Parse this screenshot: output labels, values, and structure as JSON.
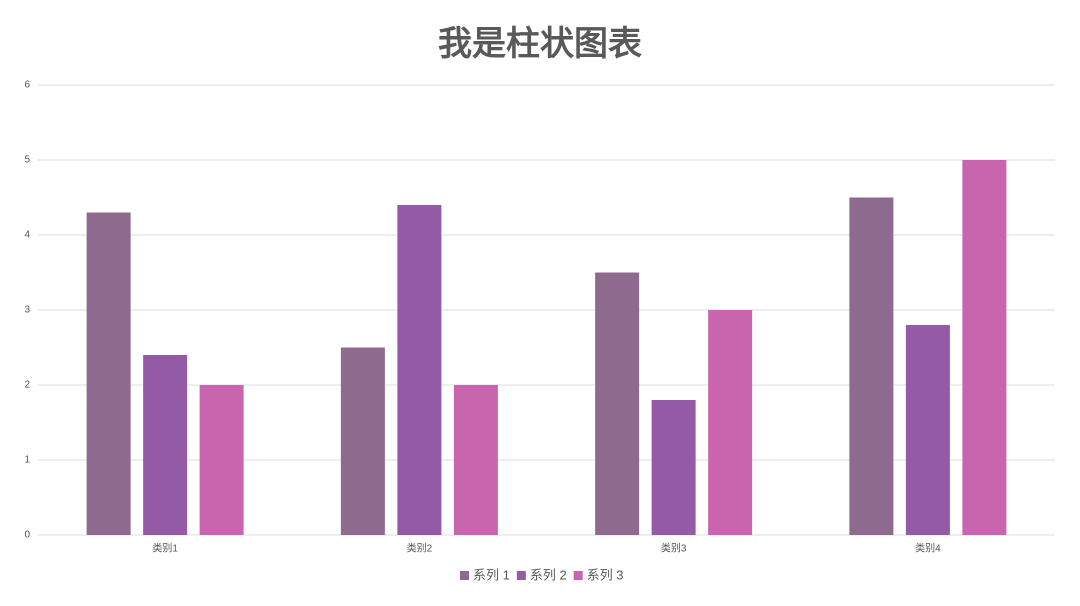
{
  "chart_data": {
    "type": "bar",
    "title": "我是柱状图表",
    "categories": [
      "类别1",
      "类别2",
      "类别3",
      "类别4"
    ],
    "series": [
      {
        "name": "系列 1",
        "color": "#8e6b8e",
        "values": [
          4.3,
          2.5,
          3.5,
          4.5
        ]
      },
      {
        "name": "系列 2",
        "color": "#955aa6",
        "values": [
          2.4,
          4.4,
          1.8,
          2.8
        ]
      },
      {
        "name": "系列 3",
        "color": "#c865ae",
        "values": [
          2,
          2,
          3,
          5
        ]
      }
    ],
    "ylim": [
      0,
      6
    ],
    "yticks": [
      0,
      1,
      2,
      3,
      4,
      5,
      6
    ],
    "grid": true,
    "legend": "bottom"
  }
}
